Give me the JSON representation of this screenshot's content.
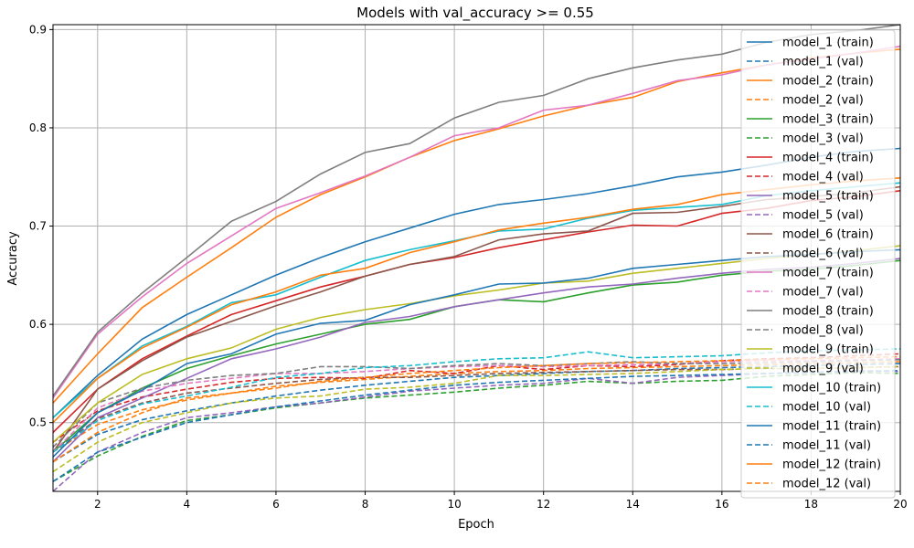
{
  "chart_data": {
    "type": "line",
    "title": "Models with val_accuracy >= 0.55",
    "xlabel": "Epoch",
    "ylabel": "Accuracy",
    "xlim": [
      1,
      20
    ],
    "ylim": [
      0.43,
      0.905
    ],
    "xticks": [
      2,
      4,
      6,
      8,
      10,
      12,
      14,
      16,
      18,
      20
    ],
    "yticks": [
      0.5,
      0.6,
      0.7,
      0.8,
      0.9
    ],
    "xtick_labels": [
      "2",
      "4",
      "6",
      "8",
      "10",
      "12",
      "14",
      "16",
      "18",
      "20"
    ],
    "ytick_labels": [
      "0.5",
      "0.6",
      "0.7",
      "0.8",
      "0.9"
    ],
    "grid": true,
    "legend_position": "upper-right",
    "x": [
      1,
      2,
      3,
      4,
      5,
      6,
      7,
      8,
      9,
      10,
      11,
      12,
      13,
      14,
      15,
      16,
      17,
      18,
      19,
      20
    ],
    "series": [
      {
        "name": "model_1 (train)",
        "color": "#1f77b4",
        "dash": "solid",
        "values": [
          0.505,
          0.548,
          0.585,
          0.61,
          0.63,
          0.65,
          0.668,
          0.684,
          0.698,
          0.712,
          0.722,
          0.727,
          0.733,
          0.741,
          0.75,
          0.755,
          0.762,
          0.77,
          0.776,
          0.779
        ]
      },
      {
        "name": "model_1 (val)",
        "color": "#1f77b4",
        "dash": "dashed",
        "values": [
          0.46,
          0.488,
          0.503,
          0.512,
          0.52,
          0.527,
          0.533,
          0.538,
          0.542,
          0.546,
          0.548,
          0.55,
          0.552,
          0.553,
          0.555,
          0.556,
          0.557,
          0.558,
          0.559,
          0.56
        ]
      },
      {
        "name": "model_2 (train)",
        "color": "#ff7f0e",
        "dash": "solid",
        "values": [
          0.52,
          0.57,
          0.617,
          0.648,
          0.678,
          0.709,
          0.732,
          0.75,
          0.77,
          0.787,
          0.799,
          0.812,
          0.823,
          0.831,
          0.847,
          0.856,
          0.864,
          0.871,
          0.876,
          0.88
        ]
      },
      {
        "name": "model_2 (val)",
        "color": "#ff7f0e",
        "dash": "dashed",
        "values": [
          0.47,
          0.498,
          0.513,
          0.523,
          0.53,
          0.537,
          0.541,
          0.544,
          0.547,
          0.55,
          0.552,
          0.553,
          0.555,
          0.556,
          0.557,
          0.558,
          0.559,
          0.56,
          0.561,
          0.562
        ]
      },
      {
        "name": "model_3 (train)",
        "color": "#2ca02c",
        "dash": "solid",
        "values": [
          0.47,
          0.51,
          0.535,
          0.555,
          0.568,
          0.58,
          0.59,
          0.6,
          0.605,
          0.618,
          0.625,
          0.623,
          0.632,
          0.64,
          0.643,
          0.65,
          0.654,
          0.656,
          0.66,
          0.665
        ]
      },
      {
        "name": "model_3 (val)",
        "color": "#2ca02c",
        "dash": "dashed",
        "values": [
          0.44,
          0.466,
          0.486,
          0.502,
          0.508,
          0.515,
          0.52,
          0.525,
          0.528,
          0.531,
          0.535,
          0.538,
          0.542,
          0.54,
          0.542,
          0.543,
          0.547,
          0.549,
          0.551,
          0.55
        ]
      },
      {
        "name": "model_4 (train)",
        "color": "#d62728",
        "dash": "solid",
        "values": [
          0.49,
          0.534,
          0.565,
          0.588,
          0.61,
          0.624,
          0.638,
          0.649,
          0.661,
          0.668,
          0.678,
          0.686,
          0.694,
          0.701,
          0.7,
          0.713,
          0.718,
          0.726,
          0.73,
          0.736
        ]
      },
      {
        "name": "model_4 (val)",
        "color": "#d62728",
        "dash": "dashed",
        "values": [
          0.48,
          0.512,
          0.526,
          0.534,
          0.541,
          0.545,
          0.546,
          0.545,
          0.553,
          0.55,
          0.558,
          0.554,
          0.558,
          0.557,
          0.559,
          0.563,
          0.565,
          0.566,
          0.568,
          0.57
        ]
      },
      {
        "name": "model_5 (train)",
        "color": "#9467bd",
        "dash": "solid",
        "values": [
          0.46,
          0.505,
          0.525,
          0.545,
          0.565,
          0.575,
          0.587,
          0.602,
          0.608,
          0.618,
          0.625,
          0.632,
          0.638,
          0.641,
          0.647,
          0.652,
          0.656,
          0.658,
          0.662,
          0.667
        ]
      },
      {
        "name": "model_5 (val)",
        "color": "#9467bd",
        "dash": "dashed",
        "values": [
          0.43,
          0.47,
          0.49,
          0.505,
          0.51,
          0.516,
          0.52,
          0.526,
          0.532,
          0.535,
          0.538,
          0.54,
          0.545,
          0.54,
          0.546,
          0.548,
          0.55,
          0.551,
          0.553,
          0.552
        ]
      },
      {
        "name": "model_6 (train)",
        "color": "#8c564b",
        "dash": "solid",
        "values": [
          0.47,
          0.534,
          0.563,
          0.587,
          0.603,
          0.619,
          0.633,
          0.649,
          0.661,
          0.669,
          0.686,
          0.692,
          0.695,
          0.713,
          0.714,
          0.72,
          0.727,
          0.73,
          0.734,
          0.74
        ]
      },
      {
        "name": "model_6 (val)",
        "color": "#8c564b",
        "dash": "dashed",
        "values": [
          0.47,
          0.504,
          0.52,
          0.53,
          0.535,
          0.54,
          0.544,
          0.546,
          0.546,
          0.548,
          0.55,
          0.551,
          0.552,
          0.553,
          0.554,
          0.554,
          0.555,
          0.555,
          0.556,
          0.557
        ]
      },
      {
        "name": "model_7 (train)",
        "color": "#e377c2",
        "dash": "solid",
        "values": [
          0.525,
          0.59,
          0.628,
          0.662,
          0.69,
          0.718,
          0.734,
          0.751,
          0.77,
          0.792,
          0.8,
          0.818,
          0.823,
          0.835,
          0.848,
          0.854,
          0.864,
          0.87,
          0.876,
          0.883
        ]
      },
      {
        "name": "model_7 (val)",
        "color": "#e377c2",
        "dash": "dashed",
        "values": [
          0.47,
          0.515,
          0.532,
          0.54,
          0.545,
          0.55,
          0.55,
          0.552,
          0.555,
          0.557,
          0.558,
          0.557,
          0.558,
          0.559,
          0.56,
          0.562,
          0.563,
          0.563,
          0.564,
          0.565
        ]
      },
      {
        "name": "model_8 (train)",
        "color": "#7f7f7f",
        "dash": "solid",
        "values": [
          0.527,
          0.592,
          0.632,
          0.668,
          0.705,
          0.725,
          0.753,
          0.775,
          0.784,
          0.81,
          0.826,
          0.833,
          0.85,
          0.861,
          0.869,
          0.875,
          0.887,
          0.895,
          0.899,
          0.905
        ]
      },
      {
        "name": "model_8 (val)",
        "color": "#7f7f7f",
        "dash": "dashed",
        "values": [
          0.475,
          0.52,
          0.535,
          0.543,
          0.548,
          0.55,
          0.557,
          0.557,
          0.555,
          0.558,
          0.56,
          0.558,
          0.56,
          0.562,
          0.56,
          0.56,
          0.561,
          0.562,
          0.563,
          0.564
        ]
      },
      {
        "name": "model_9 (train)",
        "color": "#bcbd22",
        "dash": "solid",
        "values": [
          0.48,
          0.52,
          0.549,
          0.565,
          0.576,
          0.595,
          0.607,
          0.615,
          0.621,
          0.629,
          0.635,
          0.642,
          0.644,
          0.652,
          0.657,
          0.662,
          0.667,
          0.671,
          0.675,
          0.68
        ]
      },
      {
        "name": "model_9 (val)",
        "color": "#bcbd22",
        "dash": "dashed",
        "values": [
          0.45,
          0.48,
          0.5,
          0.51,
          0.52,
          0.525,
          0.527,
          0.534,
          0.536,
          0.54,
          0.548,
          0.548,
          0.549,
          0.55,
          0.552,
          0.554,
          0.555,
          0.555,
          0.556,
          0.557
        ]
      },
      {
        "name": "model_10 (train)",
        "color": "#17becf",
        "dash": "solid",
        "values": [
          0.505,
          0.545,
          0.578,
          0.598,
          0.622,
          0.63,
          0.648,
          0.665,
          0.676,
          0.685,
          0.695,
          0.697,
          0.708,
          0.716,
          0.719,
          0.722,
          0.731,
          0.736,
          0.74,
          0.744
        ]
      },
      {
        "name": "model_10 (val)",
        "color": "#17becf",
        "dash": "dashed",
        "values": [
          0.47,
          0.502,
          0.519,
          0.527,
          0.536,
          0.546,
          0.55,
          0.556,
          0.558,
          0.562,
          0.565,
          0.566,
          0.572,
          0.566,
          0.567,
          0.568,
          0.571,
          0.573,
          0.574,
          0.575
        ]
      },
      {
        "name": "model_11 (train)",
        "color": "#1f77b4",
        "dash": "solid",
        "values": [
          0.465,
          0.51,
          0.533,
          0.56,
          0.57,
          0.59,
          0.601,
          0.604,
          0.62,
          0.63,
          0.641,
          0.642,
          0.647,
          0.657,
          0.661,
          0.665,
          0.669,
          0.671,
          0.674,
          0.676
        ]
      },
      {
        "name": "model_11 (val)",
        "color": "#1f77b4",
        "dash": "dashed",
        "values": [
          0.44,
          0.47,
          0.485,
          0.5,
          0.508,
          0.516,
          0.522,
          0.528,
          0.533,
          0.538,
          0.541,
          0.543,
          0.545,
          0.547,
          0.548,
          0.549,
          0.55,
          0.551,
          0.552,
          0.553
        ]
      },
      {
        "name": "model_12 (train)",
        "color": "#ff7f0e",
        "dash": "solid",
        "values": [
          0.5,
          0.545,
          0.576,
          0.597,
          0.62,
          0.633,
          0.65,
          0.657,
          0.673,
          0.684,
          0.696,
          0.703,
          0.709,
          0.717,
          0.722,
          0.732,
          0.737,
          0.742,
          0.746,
          0.749
        ]
      },
      {
        "name": "model_12 (val)",
        "color": "#ff7f0e",
        "dash": "dashed",
        "values": [
          0.46,
          0.49,
          0.51,
          0.525,
          0.53,
          0.535,
          0.542,
          0.546,
          0.55,
          0.553,
          0.556,
          0.558,
          0.56,
          0.561,
          0.562,
          0.563,
          0.564,
          0.565,
          0.566,
          0.567
        ]
      }
    ]
  }
}
